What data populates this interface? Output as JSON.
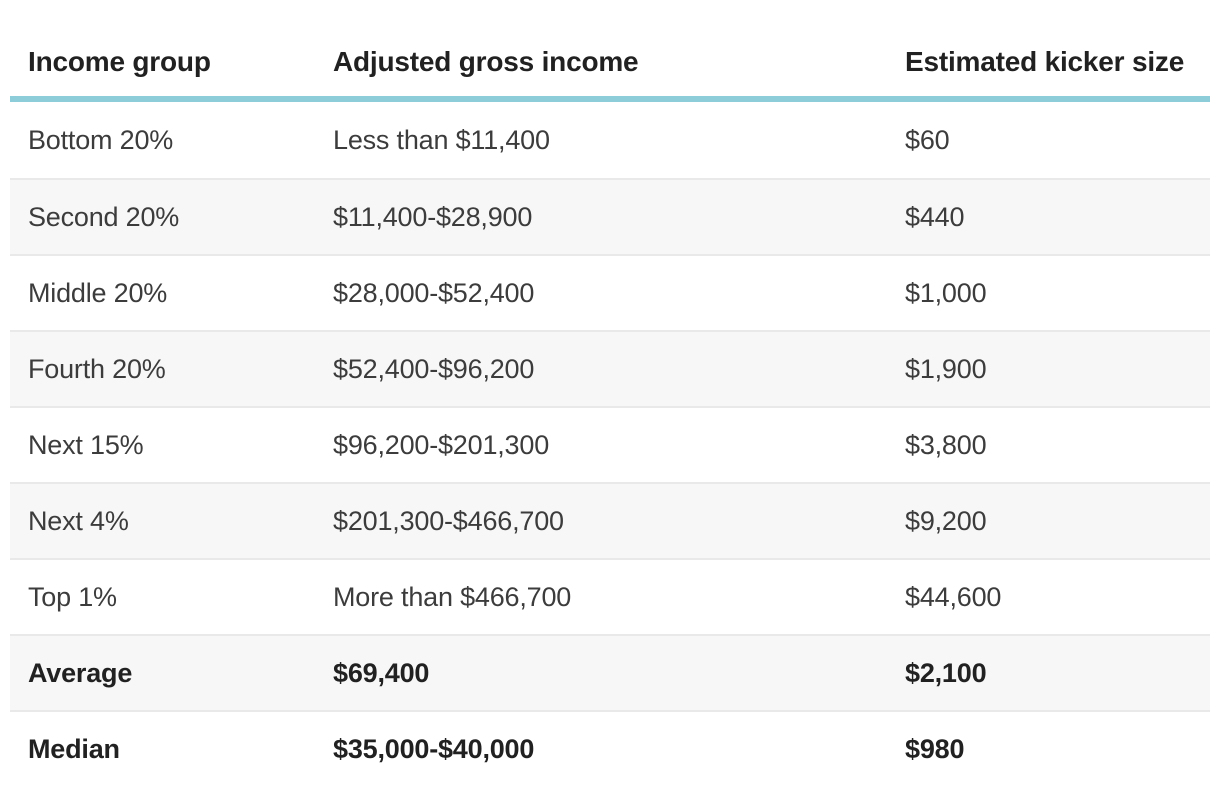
{
  "chart_data": {
    "type": "table",
    "columns": [
      "Income group",
      "Adjusted gross income",
      "Estimated kicker size"
    ],
    "rows": [
      {
        "group": "Bottom 20%",
        "agi": "Less than $11,400",
        "kicker": "$60",
        "bold": false
      },
      {
        "group": "Second 20%",
        "agi": "$11,400-$28,900",
        "kicker": "$440",
        "bold": false
      },
      {
        "group": "Middle 20%",
        "agi": "$28,000-$52,400",
        "kicker": "$1,000",
        "bold": false
      },
      {
        "group": "Fourth 20%",
        "agi": "$52,400-$96,200",
        "kicker": "$1,900",
        "bold": false
      },
      {
        "group": "Next 15%",
        "agi": "$96,200-$201,300",
        "kicker": "$3,800",
        "bold": false
      },
      {
        "group": "Next 4%",
        "agi": "$201,300-$466,700",
        "kicker": "$9,200",
        "bold": false
      },
      {
        "group": "Top 1%",
        "agi": "More than $466,700",
        "kicker": "$44,600",
        "bold": false
      },
      {
        "group": "Average",
        "agi": "$69,400",
        "kicker": "$2,100",
        "bold": true
      },
      {
        "group": "Median",
        "agi": "$35,000-$40,000",
        "kicker": "$980",
        "bold": true
      }
    ]
  },
  "colors": {
    "header_rule": "#8DCDD9",
    "row_alt_bg": "#f7f7f7",
    "row_separator": "#e9e9e9",
    "body_text": "#3c3c3c",
    "bold_text": "#212121",
    "page_bg": "#ffffff"
  }
}
